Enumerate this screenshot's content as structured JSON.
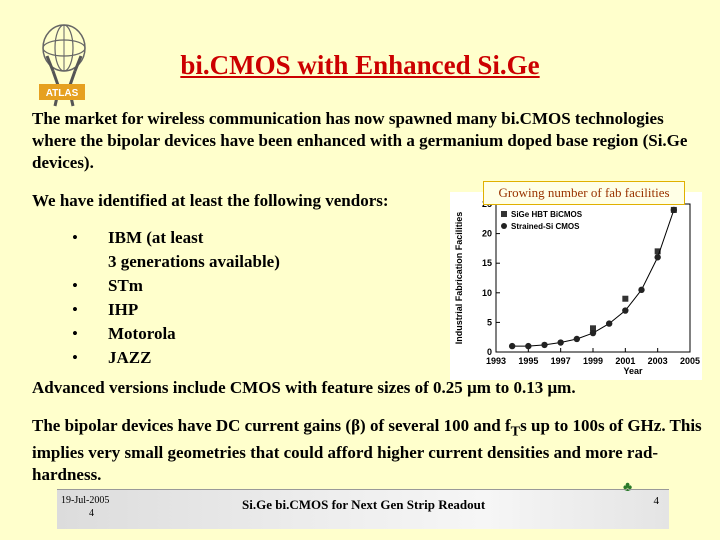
{
  "logo": {
    "text": "ATLAS"
  },
  "title": "bi.CMOS with Enhanced Si.Ge",
  "paragraph1": "The market for wireless communication has now spawned many bi.CMOS technologies where the bipolar devices have been enhanced with a germanium doped base region (Si.Ge devices).",
  "paragraph2": "We have identified at least the following vendors:",
  "vendors": [
    {
      "bullet": "•",
      "line1": "IBM (at least",
      "line2": "3 generations available)"
    },
    {
      "bullet": "•",
      "line1": "STm",
      "line2": ""
    },
    {
      "bullet": "•",
      "line1": "IHP",
      "line2": ""
    },
    {
      "bullet": "•",
      "line1": "Motorola",
      "line2": ""
    },
    {
      "bullet": "•",
      "line1": "JAZZ",
      "line2": ""
    }
  ],
  "paragraph3": {
    "part1": "Advanced versions include CMOS with feature sizes of 0.25 ",
    "unit1": "μ",
    "part2": "m to 0.13 ",
    "unit2": "μ",
    "part3": "m."
  },
  "paragraph4": {
    "part1": "The bipolar devices have DC current gains (",
    "beta": "β",
    "part2": ") of several 100 and f",
    "sub": "T",
    "part3": "s up to 100s of GHz.  This implies very small geometries that could afford higher current densities and more rad-hardness."
  },
  "chart_caption": "Growing number of fab facilities",
  "chart_data": {
    "type": "scatter",
    "xlabel": "Year",
    "ylabel": "Industrial Fabrication Facilities",
    "xlim": [
      1993,
      2005
    ],
    "ylim": [
      0,
      25
    ],
    "xticks": [
      "1993",
      "1995",
      "1997",
      "1999",
      "2001",
      "2003",
      "2005"
    ],
    "yticks": [
      "0",
      "5",
      "10",
      "15",
      "20",
      "25"
    ],
    "grid": false,
    "legend_position": "top-left",
    "series": [
      {
        "name": "SiGe HBT BiCMOS",
        "marker": "square",
        "color": "#333333",
        "x": [
          1999,
          2001,
          2003,
          2004
        ],
        "y": [
          4,
          9,
          17,
          24
        ]
      },
      {
        "name": "Strained-Si CMOS",
        "marker": "circle",
        "color": "#222222",
        "x": [
          1994,
          1995,
          1996,
          1997,
          1998,
          1999,
          2000,
          2001,
          2002,
          2003,
          2004
        ],
        "y": [
          1,
          1,
          1.2,
          1.6,
          2.2,
          3.2,
          4.8,
          7,
          10.5,
          16,
          24
        ]
      }
    ]
  },
  "footer": {
    "date": "19-Jul-2005",
    "page_small": "4",
    "center": "Si.Ge bi.CMOS for Next Gen Strip Readout",
    "page": "4"
  }
}
